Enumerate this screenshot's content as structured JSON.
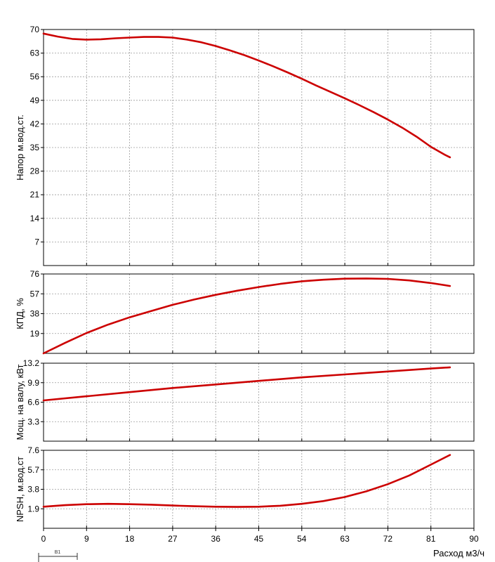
{
  "chart_data": [
    {
      "type": "line",
      "ylabel": "Напор м.вод.ст.",
      "xlim": [
        0,
        90
      ],
      "ylim": [
        0,
        70
      ],
      "yticks": [
        7,
        14,
        21,
        28,
        35,
        42,
        49,
        56,
        63,
        70
      ],
      "grid": true,
      "series": [
        {
          "color": "#cc0000",
          "x": [
            0,
            3,
            6,
            9,
            12,
            15,
            18,
            21,
            24,
            27,
            30,
            33,
            36,
            39,
            42,
            45,
            48,
            51,
            54,
            57,
            60,
            63,
            66,
            69,
            72,
            75,
            78,
            81,
            84,
            85
          ],
          "y": [
            68.8,
            67.9,
            67.2,
            67.0,
            67.1,
            67.4,
            67.6,
            67.8,
            67.8,
            67.6,
            67.0,
            66.2,
            65.1,
            63.8,
            62.4,
            60.8,
            59.1,
            57.3,
            55.4,
            53.4,
            51.5,
            49.6,
            47.6,
            45.5,
            43.3,
            40.9,
            38.2,
            35.2,
            32.8,
            32.1
          ]
        }
      ]
    },
    {
      "type": "line",
      "ylabel": "КПД, %",
      "xlim": [
        0,
        90
      ],
      "ylim": [
        0,
        76
      ],
      "yticks": [
        19,
        38,
        57,
        76
      ],
      "grid": true,
      "series": [
        {
          "color": "#cc0000",
          "x": [
            0,
            4.5,
            9,
            13.5,
            18,
            22.5,
            27,
            31.5,
            36,
            40.5,
            45,
            49.5,
            54,
            58.5,
            63,
            67.5,
            72,
            76.5,
            81,
            85
          ],
          "y": [
            0,
            10,
            19.5,
            27.5,
            34.5,
            40.5,
            46.5,
            51.5,
            56,
            60,
            63.5,
            66.5,
            69,
            70.5,
            71.5,
            71.7,
            71.3,
            69.8,
            67.3,
            64.5
          ]
        }
      ]
    },
    {
      "type": "line",
      "ylabel": "Мощ. на валу, кВт",
      "xlim": [
        0,
        90
      ],
      "ylim": [
        0,
        13.2
      ],
      "yticks": [
        3.3,
        6.6,
        9.9,
        13.2
      ],
      "grid": true,
      "series": [
        {
          "color": "#cc0000",
          "x": [
            0,
            9,
            18,
            27,
            36,
            45,
            54,
            63,
            72,
            81,
            85
          ],
          "y": [
            6.9,
            7.6,
            8.3,
            9.0,
            9.6,
            10.2,
            10.8,
            11.3,
            11.8,
            12.3,
            12.5
          ]
        }
      ]
    },
    {
      "type": "line",
      "ylabel": "NPSH, м.вод.ст",
      "xlabel": "Расход м3/ч",
      "xlim": [
        0,
        90
      ],
      "xticks": [
        0,
        9,
        18,
        27,
        36,
        45,
        54,
        63,
        72,
        81,
        90
      ],
      "ylim": [
        0,
        7.6
      ],
      "yticks": [
        1.9,
        3.8,
        5.7,
        7.6
      ],
      "grid": true,
      "series": [
        {
          "color": "#cc0000",
          "x": [
            0,
            4.5,
            9,
            13.5,
            18,
            22.5,
            27,
            31.5,
            36,
            40.5,
            45,
            49.5,
            54,
            58.5,
            63,
            67.5,
            72,
            76.5,
            81,
            85
          ],
          "y": [
            2.1,
            2.25,
            2.35,
            2.38,
            2.35,
            2.3,
            2.22,
            2.15,
            2.1,
            2.08,
            2.1,
            2.2,
            2.38,
            2.65,
            3.05,
            3.6,
            4.3,
            5.15,
            6.2,
            7.15
          ]
        }
      ]
    }
  ],
  "marker": {
    "label": "B1"
  }
}
